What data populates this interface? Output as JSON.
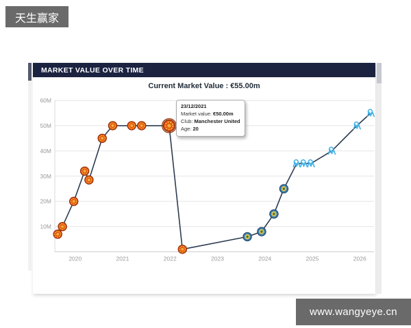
{
  "brand_badge": "天生赢家",
  "watermark": "www.wangyeye.cn",
  "panel": {
    "title": "MARKET VALUE OVER TIME",
    "subtitle": "Current Market Value : €55.00m"
  },
  "tooltip": {
    "date": "23/12/2021",
    "rows": [
      {
        "label": "Market value:",
        "value": "€50.00m"
      },
      {
        "label": "Club:",
        "value": "Manchester United"
      },
      {
        "label": "Age:",
        "value": "20"
      }
    ]
  },
  "colors": {
    "header_bg": "#1b2341",
    "line": "#2c3b50",
    "badge_bg": "#6a6a6a",
    "grid": "#e5e5e5",
    "axis": "#cccccc",
    "tick_text": "#9a9a9a",
    "manutd": "#e2570f",
    "getafe": "#3a7fae",
    "marseille": "#3fb0e5"
  },
  "chart_data": {
    "type": "line",
    "title": "MARKET VALUE OVER TIME",
    "subtitle": "Current Market Value : €55.00m",
    "xlabel": "",
    "ylabel": "",
    "units": "EUR millions",
    "x_ticks": [
      2020,
      2021,
      2022,
      2023,
      2024,
      2025,
      2026
    ],
    "y_tick_labels": [
      "10M",
      "20M",
      "30M",
      "40M",
      "50M",
      "60M"
    ],
    "y_tick_values": [
      10,
      20,
      30,
      40,
      50,
      60
    ],
    "xlim": [
      2019.57,
      2026.3
    ],
    "ylim": [
      0,
      60
    ],
    "grid": "horizontal",
    "legend": "none",
    "series": [
      {
        "name": "Manchester United",
        "icon": "manutd-crest",
        "points": [
          [
            2019.63,
            7
          ],
          [
            2019.73,
            10
          ],
          [
            2019.97,
            20
          ],
          [
            2020.2,
            32
          ],
          [
            2020.29,
            28.5
          ],
          [
            2020.57,
            45
          ],
          [
            2020.79,
            50
          ],
          [
            2021.19,
            50
          ],
          [
            2021.4,
            50
          ],
          [
            2021.98,
            50
          ],
          [
            2022.26,
            1
          ]
        ]
      },
      {
        "name": "Getafe CF",
        "icon": "getafe-crest",
        "points": [
          [
            2023.63,
            6
          ],
          [
            2023.93,
            8
          ],
          [
            2024.19,
            15
          ],
          [
            2024.4,
            25
          ]
        ]
      },
      {
        "name": "Olympique Marseille",
        "icon": "marseille-crest",
        "points": [
          [
            2024.67,
            35
          ],
          [
            2024.82,
            35
          ],
          [
            2024.97,
            35
          ],
          [
            2025.41,
            40
          ],
          [
            2025.94,
            50
          ],
          [
            2026.23,
            55
          ]
        ]
      }
    ],
    "highlight_point": {
      "x": 2021.98,
      "y": 50,
      "series": "Manchester United",
      "tooltip": {
        "date": "23/12/2021",
        "market_value": "€50.00m",
        "club": "Manchester United",
        "age": "20"
      }
    }
  }
}
